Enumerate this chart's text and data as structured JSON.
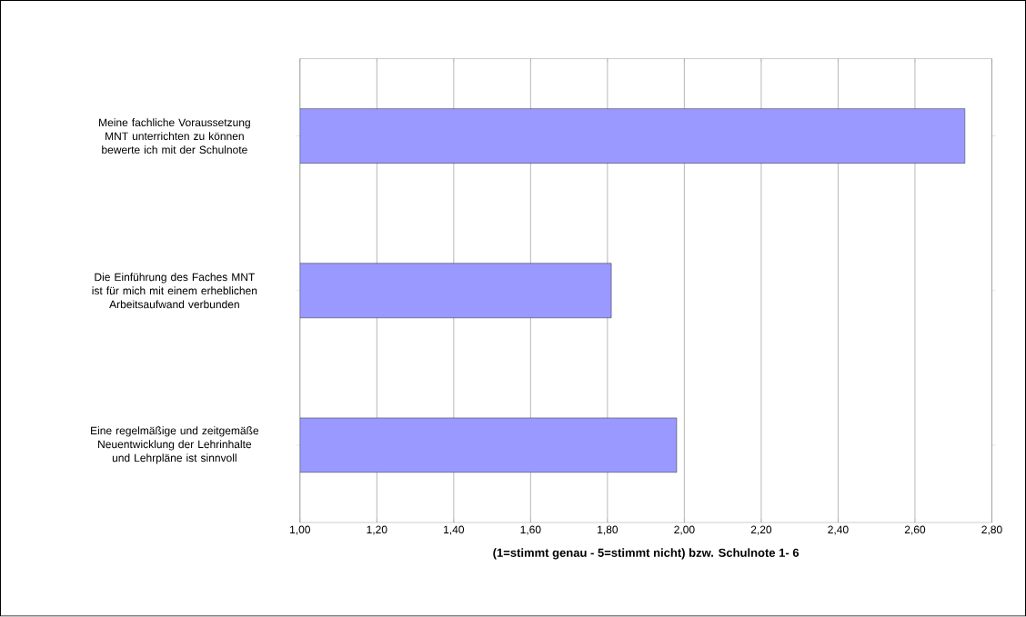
{
  "chart_data": {
    "type": "bar",
    "orientation": "horizontal",
    "xlabel": "(1=stimmt genau - 5=stimmt nicht) bzw. Schulnote 1- 6",
    "categories": [
      "Meine fachliche Voraussetzung MNT unterrichten zu können bewerte ich mit der Schulnote",
      "Die Einführung des Faches MNT ist für mich mit einem erheblichen Arbeitsaufwand verbunden",
      "Eine regelmäßige und zeitgemäße Neuentwicklung der Lehrinhalte und Lehrpläne ist sinnvoll"
    ],
    "values": [
      2.73,
      1.81,
      1.98
    ],
    "color": "#9999ff",
    "xlim": [
      1,
      2.8
    ],
    "xticks": [
      {
        "value": 1.0,
        "label": "1,00"
      },
      {
        "value": 1.2,
        "label": "1,20"
      },
      {
        "value": 1.4,
        "label": "1,40"
      },
      {
        "value": 1.6,
        "label": "1,60"
      },
      {
        "value": 1.8,
        "label": "1,80"
      },
      {
        "value": 2.0,
        "label": "2,00"
      },
      {
        "value": 2.2,
        "label": "2,20"
      },
      {
        "value": 2.4,
        "label": "2,40"
      },
      {
        "value": 2.6,
        "label": "2,60"
      },
      {
        "value": 2.8,
        "label": "2,80"
      }
    ],
    "grid": "x"
  }
}
